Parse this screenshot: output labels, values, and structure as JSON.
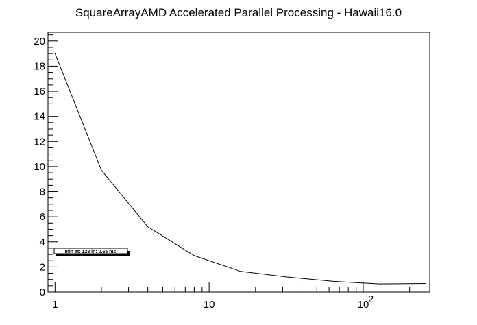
{
  "chart_data": {
    "type": "line",
    "title": "SquareArrayAMD Accelerated Parallel Processing - Hawaii16.0",
    "xlabel": "",
    "ylabel": "",
    "x_scale": "log",
    "xlim": [
      0.9,
      270
    ],
    "ylim": [
      0,
      20.7
    ],
    "x_ticks": [
      {
        "value": 1,
        "label": "1"
      },
      {
        "value": 10,
        "label": "10"
      },
      {
        "value": 100,
        "label": "10",
        "sup": "2"
      }
    ],
    "y_ticks": [
      0,
      2,
      4,
      6,
      8,
      10,
      12,
      14,
      16,
      18,
      20
    ],
    "grid": false,
    "series": [
      {
        "x": [
          1,
          2,
          4,
          8,
          16,
          32,
          64,
          128,
          256
        ],
        "y": [
          19.0,
          9.7,
          5.2,
          2.9,
          1.65,
          1.2,
          0.85,
          0.65,
          0.68
        ]
      }
    ],
    "legend_text": "min at: 128 in: 0.65 ms",
    "colors": {
      "line": "#000000",
      "axis": "#000000",
      "background": "#ffffff"
    }
  }
}
